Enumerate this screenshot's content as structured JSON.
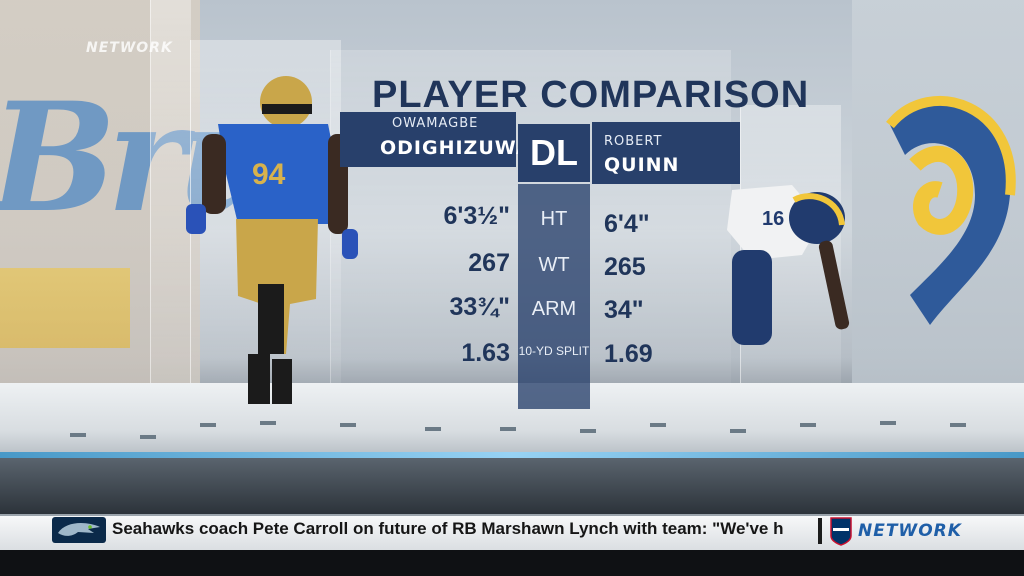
{
  "network_bug": "NETWORK",
  "title": "PLAYER COMPARISON",
  "position": "DL",
  "left_player": {
    "first_name": "OWAMAGBE",
    "last_name": "ODIGHIZUWA",
    "jersey": "94"
  },
  "right_player": {
    "first_name": "ROBERT",
    "last_name": "QUINN",
    "jersey": "16"
  },
  "rows": [
    {
      "label": "HT",
      "left": "6'3½\"",
      "right": "6'4\""
    },
    {
      "label": "WT",
      "left": "267",
      "right": "265"
    },
    {
      "label": "ARM",
      "left": "33¾\"",
      "right": "34\""
    },
    {
      "label": "10-YD SPLIT",
      "left": "1.63",
      "right": "1.69"
    }
  ],
  "ticker": {
    "text": "Seahawks coach Pete Carroll on future of RB Marshawn Lynch with team: \"We've h",
    "brand": "NETWORK",
    "team_logo": "seahawks-logo",
    "league_logo": "nfl-shield-logo"
  },
  "colors": {
    "navy": "#28406b",
    "title_text": "#20355a",
    "accent_blue": "#3d7fc4",
    "gold": "#e6b52a"
  }
}
